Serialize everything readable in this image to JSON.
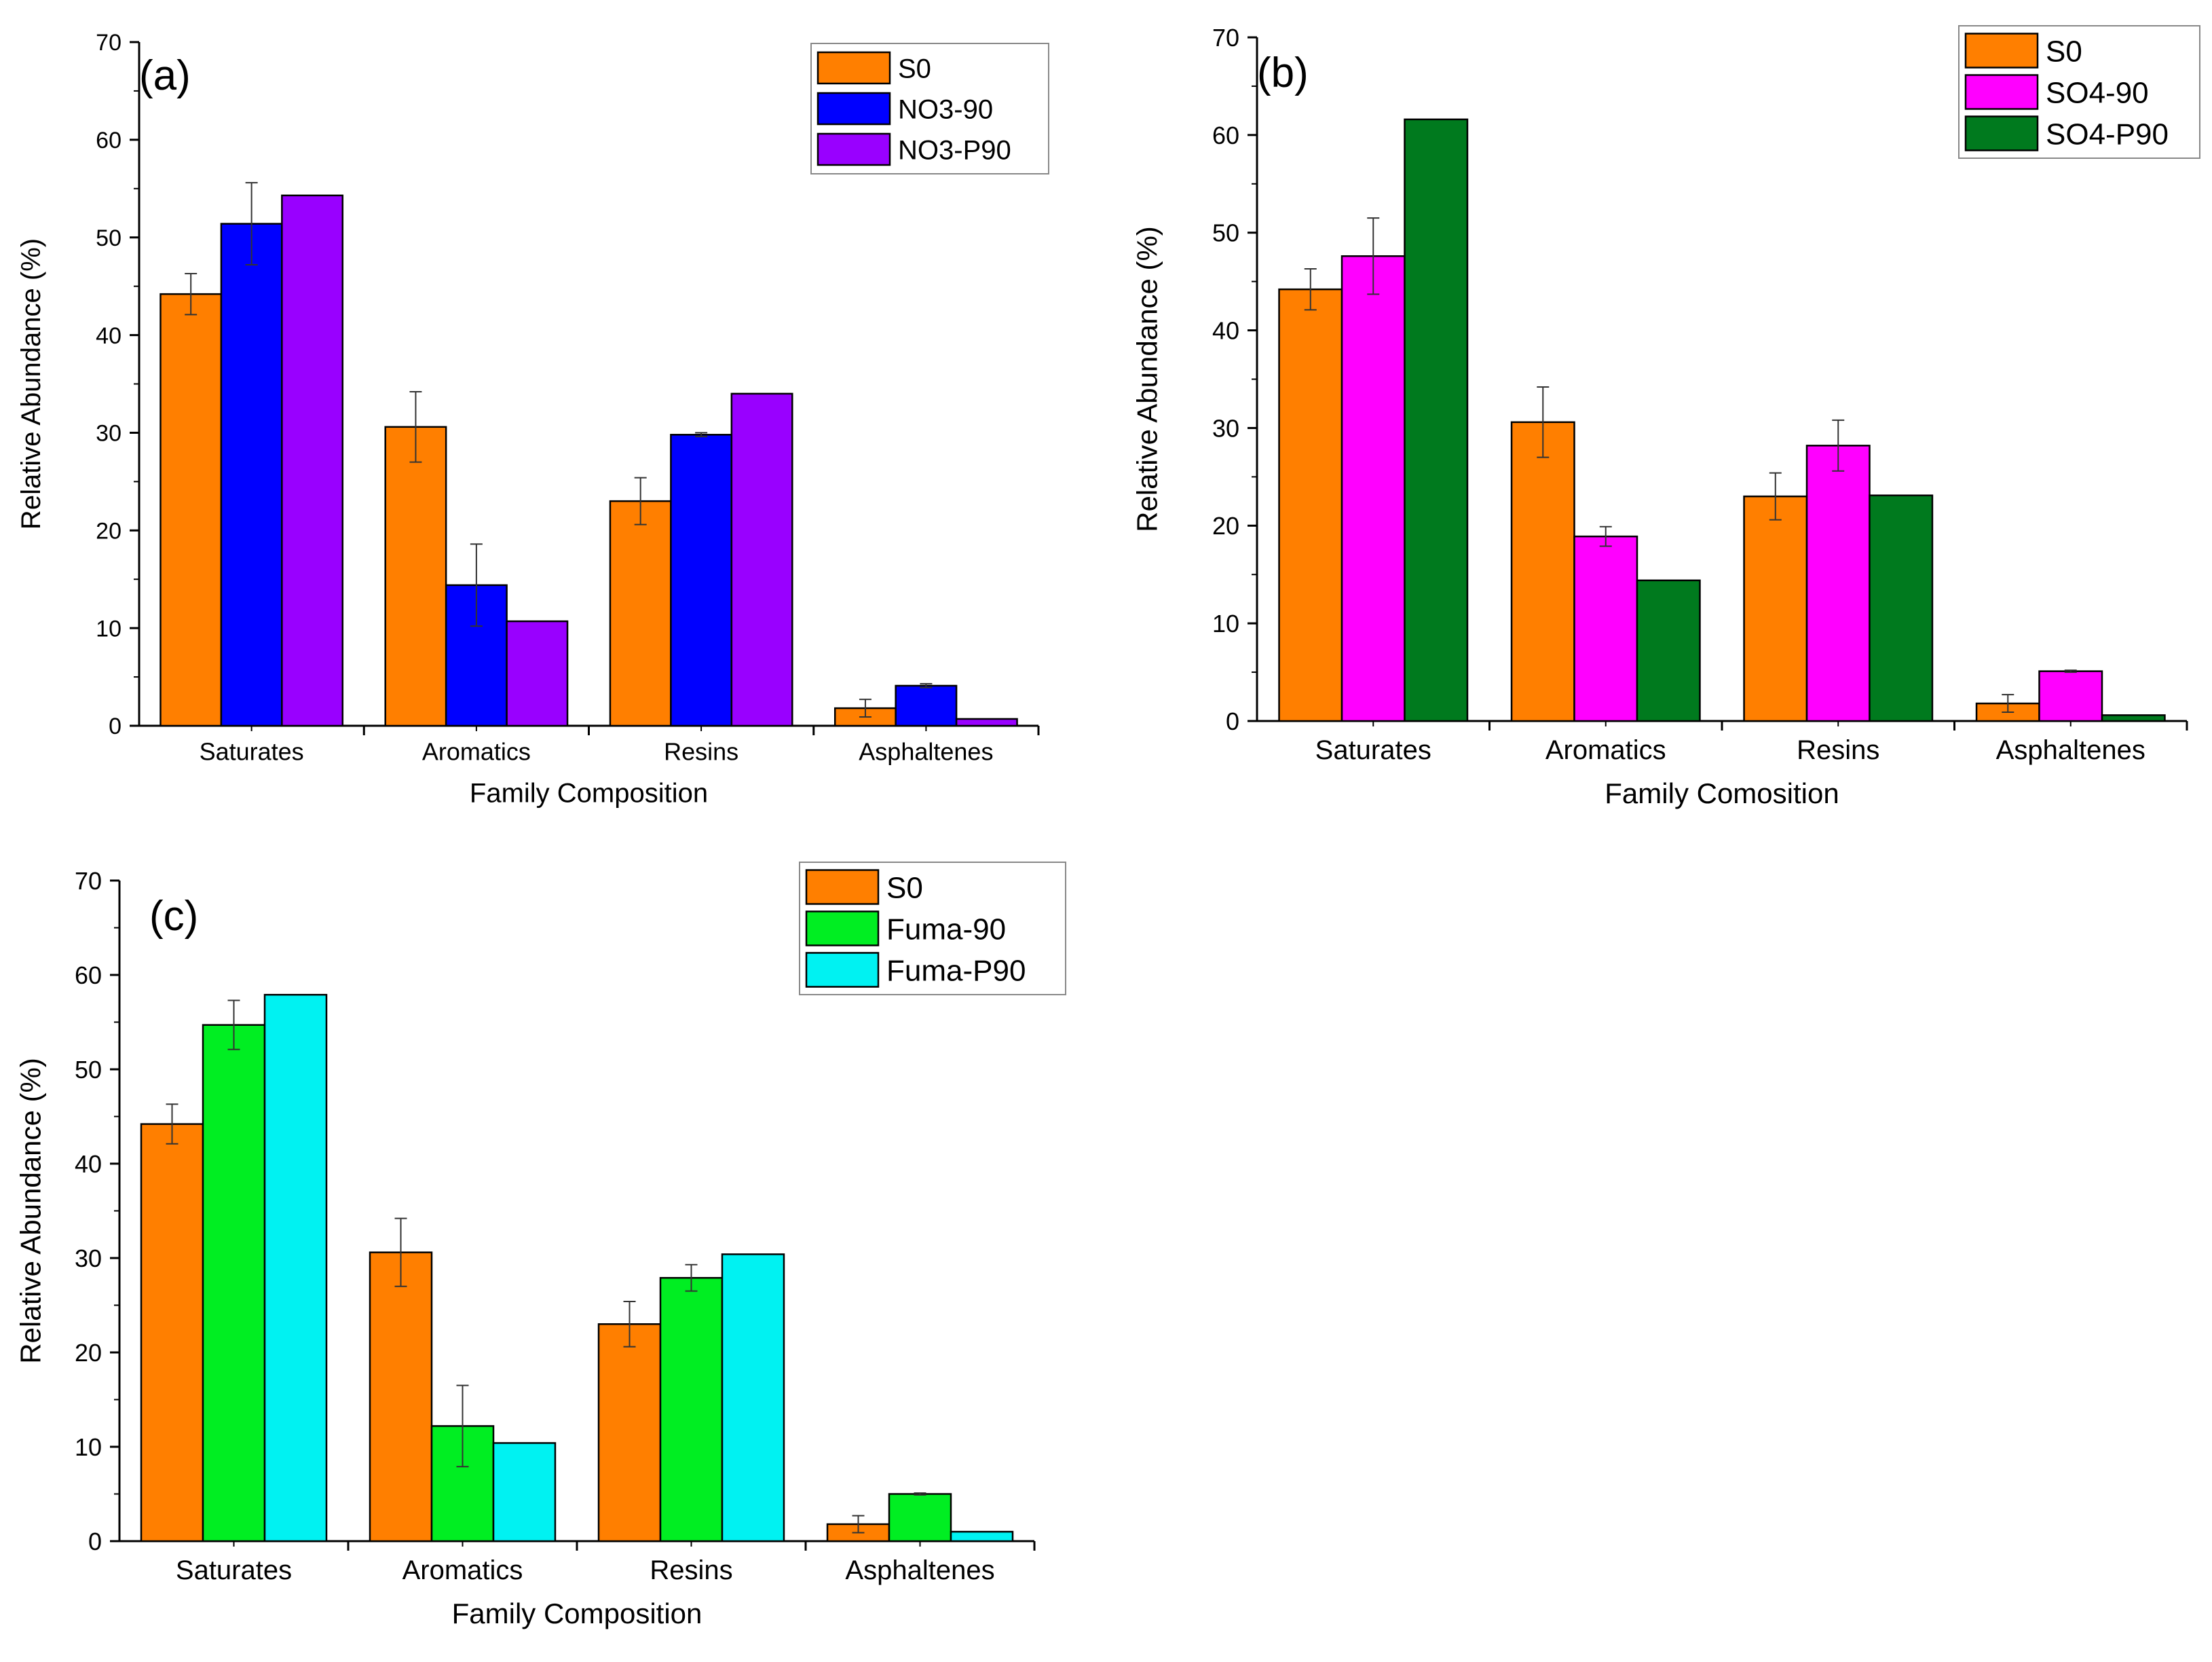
{
  "chart_data": [
    {
      "type": "bar",
      "panel_label": "(a)",
      "categories": [
        "Saturates",
        "Aromatics",
        "Resins",
        "Asphaltenes"
      ],
      "xlabel": "Family Composition",
      "ylabel": "Relative Abundance (%)",
      "ylim": [
        0,
        70
      ],
      "yticks": [
        0,
        10,
        20,
        30,
        40,
        50,
        60,
        70
      ],
      "legend_position": "top-right",
      "series": [
        {
          "name": "S0",
          "color": "#ff7f00",
          "values": [
            44.2,
            30.6,
            23.0,
            1.8
          ],
          "errors": [
            2.1,
            3.6,
            2.4,
            0.9
          ]
        },
        {
          "name": "NO3-90",
          "color": "#0000ff",
          "values": [
            51.4,
            14.4,
            29.8,
            4.1
          ],
          "errors": [
            4.2,
            4.2,
            0.2,
            0.2
          ]
        },
        {
          "name": "NO3-P90",
          "color": "#9900ff",
          "values": [
            54.3,
            10.7,
            34.0,
            0.7
          ],
          "errors": [
            0,
            0,
            0,
            0
          ]
        }
      ]
    },
    {
      "type": "bar",
      "panel_label": "(b)",
      "categories": [
        "Saturates",
        "Aromatics",
        "Resins",
        "Asphaltenes"
      ],
      "xlabel": "Family Comosition",
      "ylabel": "Relative Abundance (%)",
      "ylim": [
        0,
        70
      ],
      "yticks": [
        0,
        10,
        20,
        30,
        40,
        50,
        60,
        70
      ],
      "legend_position": "top-right",
      "series": [
        {
          "name": "S0",
          "color": "#ff7f00",
          "values": [
            44.2,
            30.6,
            23.0,
            1.8
          ],
          "errors": [
            2.1,
            3.6,
            2.4,
            0.9
          ]
        },
        {
          "name": "SO4-90",
          "color": "#ff00ff",
          "values": [
            47.6,
            18.9,
            28.2,
            5.1
          ],
          "errors": [
            3.9,
            1.0,
            2.6,
            0.1
          ]
        },
        {
          "name": "SO4-P90",
          "color": "#007a1e",
          "values": [
            61.6,
            14.4,
            23.1,
            0.6
          ],
          "errors": [
            0,
            0,
            0,
            0
          ]
        }
      ]
    },
    {
      "type": "bar",
      "panel_label": "(c)",
      "categories": [
        "Saturates",
        "Aromatics",
        "Resins",
        "Asphaltenes"
      ],
      "xlabel": "Family Composition",
      "ylabel": "Relative Abundance (%)",
      "ylim": [
        0,
        70
      ],
      "yticks": [
        0,
        10,
        20,
        30,
        40,
        50,
        60,
        70
      ],
      "legend_position": "top-right",
      "series": [
        {
          "name": "S0",
          "color": "#ff7f00",
          "values": [
            44.2,
            30.6,
            23.0,
            1.8
          ],
          "errors": [
            2.1,
            3.6,
            2.4,
            0.9
          ]
        },
        {
          "name": "Fuma-90",
          "color": "#00ee22",
          "values": [
            54.7,
            12.2,
            27.9,
            5.0
          ],
          "errors": [
            2.6,
            4.3,
            1.4,
            0.1
          ]
        },
        {
          "name": "Fuma-P90",
          "color": "#00f2f2",
          "values": [
            57.9,
            10.4,
            30.4,
            1.0
          ],
          "errors": [
            0,
            0,
            0,
            0
          ]
        }
      ]
    }
  ]
}
